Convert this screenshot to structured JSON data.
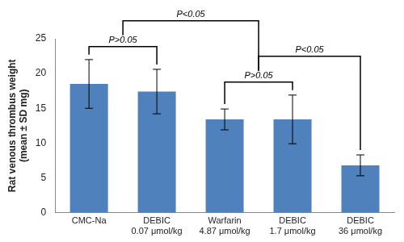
{
  "chart_data": {
    "type": "bar",
    "categories": [
      [
        "CMC-Na"
      ],
      [
        "DEBIC",
        "0.07 μmol/kg"
      ],
      [
        "Warfarin",
        "4.87 μmol/kg"
      ],
      [
        "DEBIC",
        "1.7 μmol/kg"
      ],
      [
        "DEBIC",
        "36 μmol/kg"
      ]
    ],
    "values": [
      18.5,
      17.4,
      13.4,
      13.4,
      6.8
    ],
    "errors": [
      3.5,
      3.2,
      1.5,
      3.5,
      1.5
    ],
    "color": "#4f81bd",
    "y_label": [
      "Rat venous thrombus weight",
      "(mean ± SD mg)"
    ],
    "ylim": [
      0,
      25
    ],
    "yticks": [
      0,
      5,
      10,
      15,
      20,
      25
    ],
    "grid": false,
    "comparisons": [
      {
        "groups": [
          [
            0
          ],
          [
            1
          ]
        ],
        "label": "P>0.05"
      },
      {
        "groups": [
          [
            2
          ],
          [
            3
          ]
        ],
        "label": "P>0.05"
      },
      {
        "groups": [
          [
            0,
            1
          ],
          [
            2,
            3
          ]
        ],
        "label": "P<0.05"
      },
      {
        "groups": [
          [
            2,
            3
          ],
          [
            4
          ]
        ],
        "label": "P<0.05"
      }
    ]
  }
}
